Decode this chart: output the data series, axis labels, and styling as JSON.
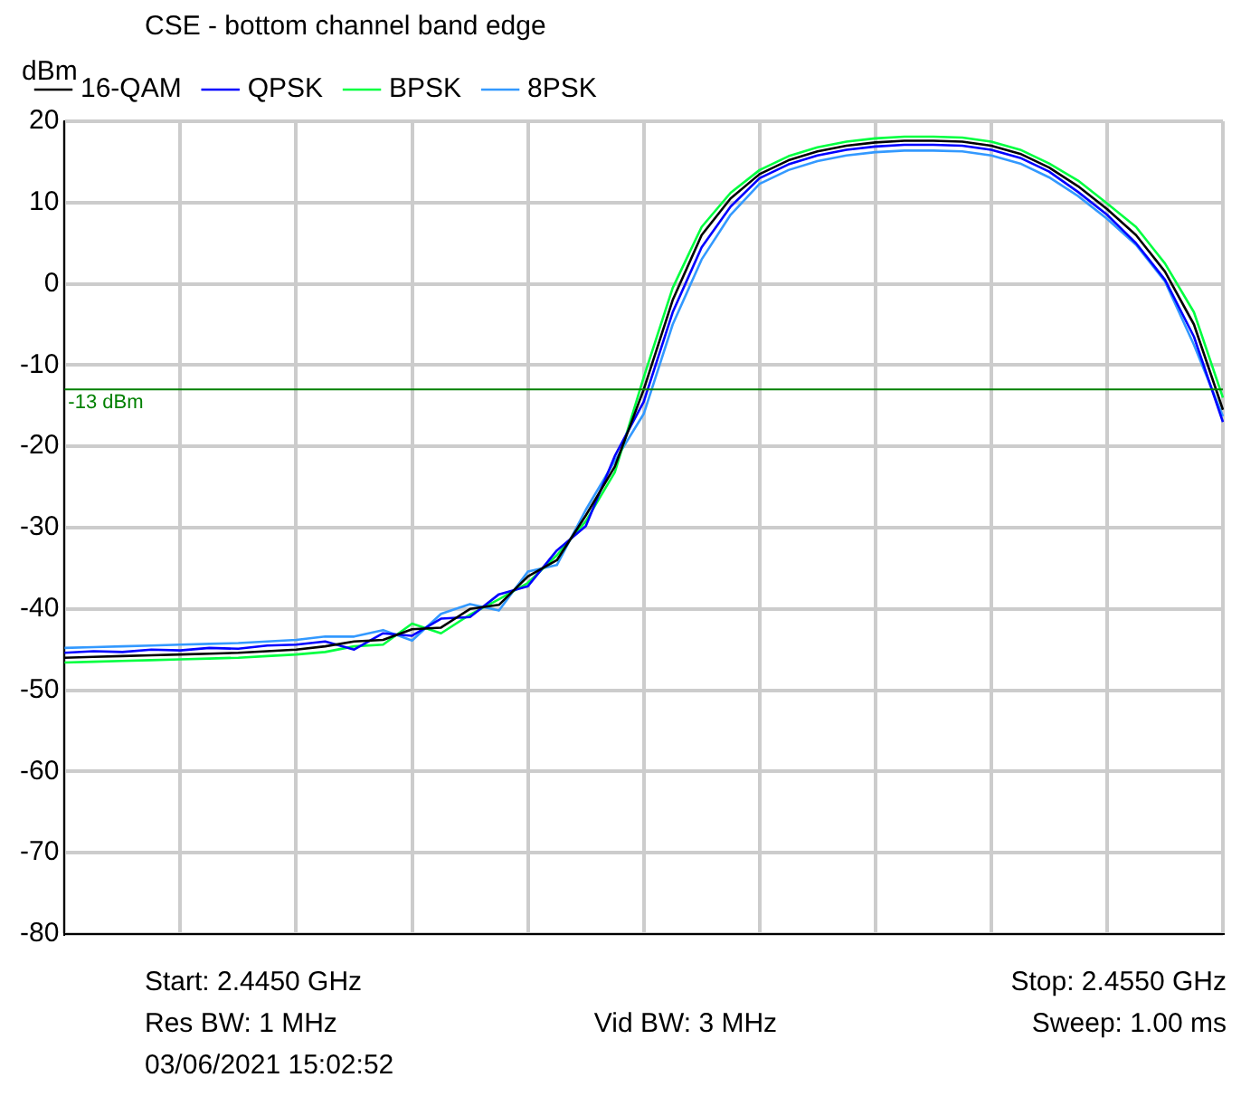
{
  "chart_data": {
    "type": "line",
    "title": "CSE - bottom channel band edge",
    "ylabel": "dBm",
    "legend": "top left",
    "grid": true,
    "tick_labels": "y",
    "marker": "none",
    "line_style": "solid",
    "categories": [
      null,
      null,
      null,
      null,
      null,
      null,
      null,
      null,
      null,
      null,
      null,
      null,
      null,
      null,
      null,
      null,
      null,
      null,
      null,
      null,
      null,
      null,
      null,
      null,
      null,
      null,
      null,
      null,
      null,
      null,
      null,
      null,
      null,
      null,
      null,
      null,
      null,
      null,
      null,
      null,
      null
    ],
    "ylim": [
      -80,
      20
    ],
    "yticks": [
      -80,
      -70,
      -60,
      -50,
      -40,
      -30,
      -20,
      -10,
      0,
      10,
      20
    ],
    "series": [
      {
        "name": "16-QAM",
        "color": "#000000",
        "values": [
          -46,
          -45.9,
          -45.8,
          -45.7,
          -45.6,
          -45.5,
          -45.4,
          -45.2,
          -45,
          -44.6,
          -44,
          -43.8,
          -42.5,
          -42.3,
          -40,
          -39.5,
          -36,
          -34,
          -28.5,
          -22.5,
          -13,
          -2,
          6,
          10.5,
          13.5,
          15.2,
          16.3,
          17,
          17.4,
          17.6,
          17.6,
          17.5,
          17,
          16,
          14.3,
          12,
          9.2,
          6,
          1.5,
          -5,
          -15.5
        ]
      },
      {
        "name": "QPSK",
        "color": "#0000ff",
        "values": [
          -45.4,
          -45.2,
          -45.3,
          -45,
          -45.1,
          -44.8,
          -44.9,
          -44.5,
          -44.4,
          -44,
          -45,
          -43,
          -43.3,
          -41.2,
          -41,
          -38.2,
          -37.2,
          -32.8,
          -29.8,
          -21.2,
          -14.5,
          -3.5,
          4.5,
          9.5,
          13,
          14.7,
          15.8,
          16.5,
          16.9,
          17.1,
          17.1,
          17,
          16.5,
          15.5,
          13.8,
          11.3,
          8.5,
          5,
          0.5,
          -6.5,
          -17
        ]
      },
      {
        "name": "BPSK",
        "color": "#00ff40",
        "values": [
          -46.6,
          -46.5,
          -46.4,
          -46.3,
          -46.2,
          -46.1,
          -46,
          -45.8,
          -45.6,
          -45.3,
          -44.6,
          -44.4,
          -41.8,
          -43,
          -40.7,
          -38.8,
          -36.8,
          -33.4,
          -29.2,
          -23.2,
          -11.5,
          -0.5,
          7,
          11.2,
          14,
          15.7,
          16.8,
          17.5,
          17.9,
          18.1,
          18.1,
          18,
          17.5,
          16.5,
          14.8,
          12.7,
          9.9,
          7,
          2.5,
          -3.5,
          -14
        ]
      },
      {
        "name": "8PSK",
        "color": "#3399ff",
        "values": [
          -44.8,
          -44.7,
          -44.6,
          -44.5,
          -44.4,
          -44.3,
          -44.2,
          -44,
          -43.8,
          -43.4,
          -43.4,
          -42.6,
          -43.9,
          -40.6,
          -39.4,
          -40.2,
          -35.4,
          -34.6,
          -27.8,
          -21.8,
          -16,
          -5,
          3,
          8.5,
          12.3,
          14,
          15.1,
          15.8,
          16.2,
          16.4,
          16.4,
          16.3,
          15.8,
          14.8,
          13.1,
          10.8,
          8,
          4.8,
          0.3,
          -7.5,
          -16.3
        ]
      }
    ],
    "ref_lines": [
      {
        "axis": "y",
        "value": -13,
        "label": "-13 dBm",
        "color": "#008000"
      }
    ],
    "annotations": [
      "Start: 2.4450 GHz",
      "Stop: 2.4550 GHz",
      "Res BW: 1 MHz",
      "Vid BW: 3 MHz",
      "Sweep: 1.00 ms",
      "03/06/2021 15:02:52"
    ]
  }
}
